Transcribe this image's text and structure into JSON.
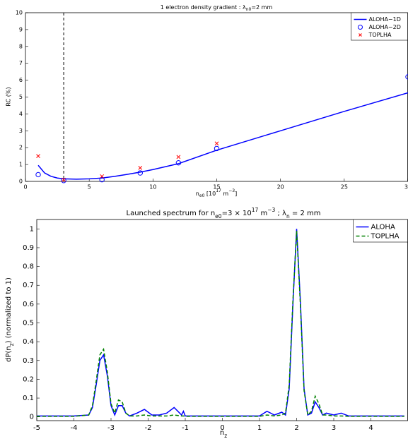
{
  "chart_data": [
    {
      "type": "line",
      "title": [
        "1 electron density gradient : λ",
        "n0",
        "=2 mm"
      ],
      "xlabel": [
        "n",
        "e0",
        " [10",
        "17",
        " m",
        "−3",
        "]"
      ],
      "ylabel": "RC (%)",
      "xlim": [
        0,
        30
      ],
      "ylim": [
        0,
        10
      ],
      "xticks": [
        0,
        5,
        10,
        15,
        20,
        25,
        30
      ],
      "yticks": [
        0,
        1,
        2,
        3,
        4,
        5,
        6,
        7,
        8,
        9,
        10
      ],
      "vline": 3,
      "legend": "upper right",
      "series": [
        {
          "name": "ALOHA−1D",
          "color": "#0000ff",
          "marker": "line",
          "x": [
            1,
            1.5,
            2,
            2.5,
            3,
            4,
            5,
            6,
            7,
            8,
            9,
            10,
            12,
            15,
            20,
            25,
            30
          ],
          "values": [
            0.95,
            0.5,
            0.3,
            0.2,
            0.15,
            0.13,
            0.15,
            0.2,
            0.3,
            0.42,
            0.55,
            0.7,
            1.05,
            1.85,
            3.0,
            4.15,
            5.25
          ]
        },
        {
          "name": "ALOHA−2D",
          "color": "#0000ff",
          "marker": "circle",
          "x": [
            1,
            3,
            6,
            9,
            12,
            15,
            30
          ],
          "values": [
            0.4,
            0.05,
            0.1,
            0.5,
            1.1,
            1.95,
            6.2
          ]
        },
        {
          "name": "TOPLHA",
          "color": "#ff0000",
          "marker": "cross",
          "x": [
            1,
            3,
            6,
            9,
            12,
            15
          ],
          "values": [
            1.5,
            0.1,
            0.3,
            0.8,
            1.45,
            2.25
          ]
        }
      ]
    },
    {
      "type": "line",
      "title": [
        "Launched spectrum for n",
        "e0",
        "=3 × 10",
        "17",
        " m",
        "−3",
        " ; λ",
        "n",
        " = 2 mm"
      ],
      "xlabel": [
        "n",
        "z"
      ],
      "ylabel": [
        "dP(n",
        "z",
        ") (normalized to 1)"
      ],
      "xlim": [
        -5,
        5
      ],
      "ylim": [
        -0.02,
        1.05
      ],
      "xticks": [
        -5,
        -4,
        -3,
        -2,
        -1,
        0,
        1,
        2,
        3,
        4
      ],
      "yticks": [
        0,
        0.1,
        0.2,
        0.3,
        0.4,
        0.5,
        0.6,
        0.7,
        0.8,
        0.9,
        1
      ],
      "legend": "upper right",
      "series": [
        {
          "name": "ALOHA",
          "color": "#0000ff",
          "marker": "line",
          "x": [
            -5,
            -4,
            -3.6,
            -3.5,
            -3.4,
            -3.3,
            -3.2,
            -3.1,
            -3.0,
            -2.9,
            -2.8,
            -2.7,
            -2.6,
            -2.5,
            -2.3,
            -2.1,
            -1.9,
            -1.7,
            -1.5,
            -1.3,
            -1.1,
            -1.05,
            -1.0,
            -0.5,
            0,
            0.5,
            1.0,
            1.2,
            1.4,
            1.6,
            1.7,
            1.8,
            1.9,
            2.0,
            2.1,
            2.2,
            2.3,
            2.4,
            2.5,
            2.6,
            2.7,
            2.8,
            3.0,
            3.2,
            3.4,
            4,
            4.9
          ],
          "values": [
            0.005,
            0.005,
            0.01,
            0.05,
            0.17,
            0.3,
            0.33,
            0.22,
            0.06,
            0.01,
            0.06,
            0.06,
            0.02,
            0.005,
            0.02,
            0.04,
            0.01,
            0.01,
            0.02,
            0.05,
            0.01,
            0.03,
            0.005,
            0.005,
            0.005,
            0.005,
            0.005,
            0.03,
            0.01,
            0.025,
            0.01,
            0.15,
            0.6,
            1.0,
            0.62,
            0.15,
            0.01,
            0.02,
            0.08,
            0.05,
            0.01,
            0.02,
            0.01,
            0.02,
            0.005,
            0.005,
            0.005
          ]
        },
        {
          "name": "TOPLHA",
          "color": "#008000",
          "marker": "dashed",
          "x": [
            -5,
            -4,
            -3.6,
            -3.5,
            -3.4,
            -3.3,
            -3.2,
            -3.1,
            -3.0,
            -2.9,
            -2.8,
            -2.7,
            -2.6,
            -2.5,
            -2.3,
            -2.1,
            -1.9,
            -1.7,
            -1.5,
            -1.3,
            -1.1,
            -1.05,
            -1.0,
            -0.5,
            0,
            0.5,
            1.0,
            1.2,
            1.4,
            1.6,
            1.7,
            1.8,
            1.9,
            2.0,
            2.1,
            2.2,
            2.3,
            2.4,
            2.5,
            2.6,
            2.7,
            2.8,
            3.0,
            3.2,
            3.4,
            4,
            4.9
          ],
          "values": [
            0.003,
            0.003,
            0.01,
            0.06,
            0.19,
            0.33,
            0.36,
            0.24,
            0.07,
            0.02,
            0.09,
            0.08,
            0.02,
            0.005,
            0.005,
            0.01,
            0.005,
            0.005,
            0.005,
            0.01,
            0.005,
            0.005,
            0.003,
            0.003,
            0.003,
            0.003,
            0.003,
            0.01,
            0.005,
            0.01,
            0.02,
            0.17,
            0.62,
            0.99,
            0.6,
            0.14,
            0.01,
            0.03,
            0.11,
            0.07,
            0.01,
            0.01,
            0.005,
            0.005,
            0.003,
            0.003,
            0.003
          ]
        }
      ]
    }
  ]
}
